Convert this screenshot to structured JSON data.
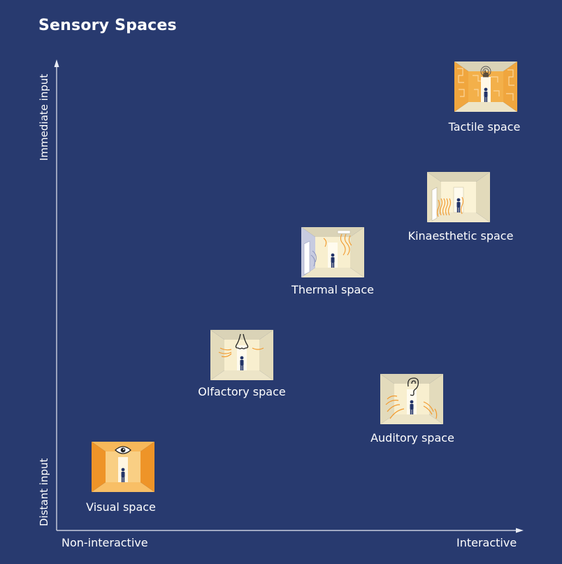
{
  "title": "Sensory Spaces",
  "axes": {
    "y_top": "Immediate input",
    "y_bottom": "Distant input",
    "x_left": "Non-interactive",
    "x_right": "Interactive"
  },
  "spaces": {
    "tactile": "Tactile space",
    "kinaesthetic": "Kinaesthetic space",
    "thermal": "Thermal space",
    "olfactory": "Olfactory space",
    "auditory": "Auditory space",
    "visual": "Visual space"
  },
  "icons": {
    "tactile": "hand-touch-icon",
    "thermal": "heat-waves-icon",
    "olfactory": "nose-icon",
    "auditory": "ear-icon",
    "visual": "eye-icon",
    "person": "person-figure-icon"
  },
  "colors": {
    "background": "#283a6f",
    "accent_orange": "#f29a2e",
    "room_wall": "#d9d2b6",
    "room_floor": "#efe6c4"
  }
}
